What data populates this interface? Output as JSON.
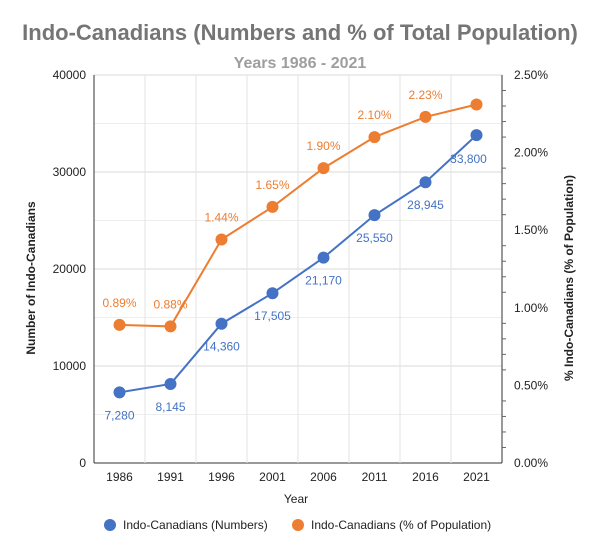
{
  "chart_data": {
    "type": "line",
    "title": "Indo-Canadians (Numbers and % of Total Population)",
    "subtitle": "Years 1986 - 2021",
    "xlabel": "Year",
    "ylabel_left": "Number of Indo-Canadians",
    "ylabel_right": "% Indo-Canadians (% of Population)",
    "categories": [
      "1986",
      "1991",
      "1996",
      "2001",
      "2006",
      "2011",
      "2016",
      "2021"
    ],
    "y_left": {
      "range": [
        0,
        40000
      ],
      "ticks": [
        "0",
        "10000",
        "20000",
        "30000",
        "40000"
      ]
    },
    "y_right": {
      "range": [
        0,
        2.5
      ],
      "ticks": [
        "0.00%",
        "0.50%",
        "1.00%",
        "1.50%",
        "2.00%",
        "2.50%"
      ]
    },
    "grid": true,
    "legend_position": "bottom",
    "series": [
      {
        "name": "Indo-Canadians (Numbers)",
        "axis": "left",
        "color": "#4472c4",
        "values": [
          7280,
          8145,
          14360,
          17505,
          21170,
          25550,
          28945,
          33800
        ],
        "labels": [
          "7,280",
          "8,145",
          "14,360",
          "17,505",
          "21,170",
          "25,550",
          "28,945",
          "33,800"
        ]
      },
      {
        "name": "Indo-Canadians (% of Population)",
        "axis": "right",
        "color": "#ed7d31",
        "values": [
          0.89,
          0.88,
          1.44,
          1.65,
          1.9,
          2.1,
          2.23,
          2.31
        ],
        "labels": [
          "0.89%",
          "0.88%",
          "1.44%",
          "1.65%",
          "1.90%",
          "2.10%",
          "2.23%",
          ""
        ]
      }
    ]
  }
}
